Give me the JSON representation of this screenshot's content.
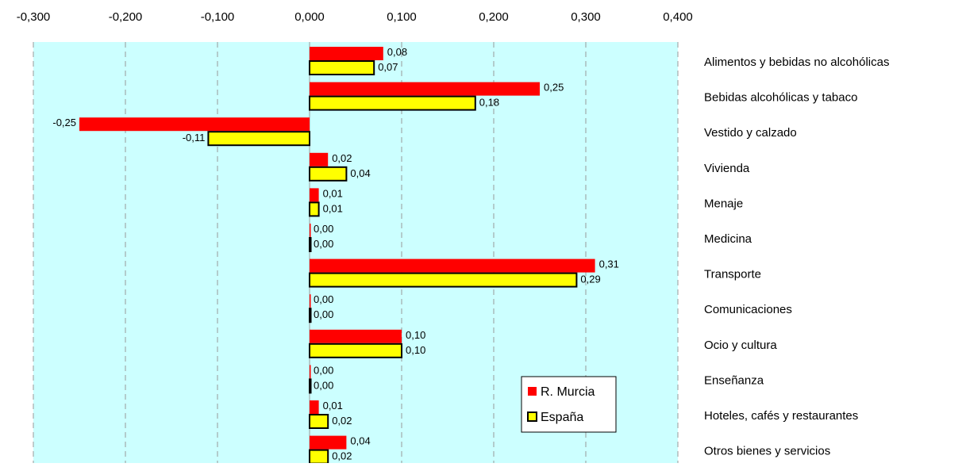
{
  "chart_data": {
    "type": "bar",
    "orientation": "horizontal",
    "xlim": [
      -0.3,
      0.4
    ],
    "xticks": [
      "-0,300",
      "-0,200",
      "-0,100",
      "0,000",
      "0,100",
      "0,200",
      "0,300",
      "0,400"
    ],
    "xtick_values": [
      -0.3,
      -0.2,
      -0.1,
      0.0,
      0.1,
      0.2,
      0.3,
      0.4
    ],
    "grid": "vertical dashed",
    "legend_position": "bottom-right",
    "categories": [
      "Alimentos y bebidas no alcohólicas",
      "Bebidas alcohólicas y tabaco",
      "Vestido y calzado",
      "Vivienda",
      "Menaje",
      "Medicina",
      "Transporte",
      "Comunicaciones",
      "Ocio y cultura",
      "Enseñanza",
      "Hoteles, cafés y restaurantes",
      "Otros bienes y servicios"
    ],
    "series": [
      {
        "name": "R. Murcia",
        "color": "#ff0000",
        "values": [
          0.08,
          0.25,
          -0.25,
          0.02,
          0.01,
          0.0,
          0.31,
          0.0,
          0.1,
          0.0,
          0.01,
          0.04
        ],
        "labels": [
          "0,08",
          "0,25",
          "-0,25",
          "0,02",
          "0,01",
          "0,00",
          "0,31",
          "0,00",
          "0,10",
          "0,00",
          "0,01",
          "0,04"
        ]
      },
      {
        "name": "España",
        "color": "#ffff00",
        "values": [
          0.07,
          0.18,
          -0.11,
          0.04,
          0.01,
          0.0,
          0.29,
          0.0,
          0.1,
          0.0,
          0.02,
          0.02
        ],
        "labels": [
          "0,07",
          "0,18",
          "-0,11",
          "0,04",
          "0,01",
          "0,00",
          "0,29",
          "0,00",
          "0,10",
          "0,00",
          "0,02",
          "0,02"
        ]
      }
    ],
    "plot_background": "#ccffff"
  }
}
